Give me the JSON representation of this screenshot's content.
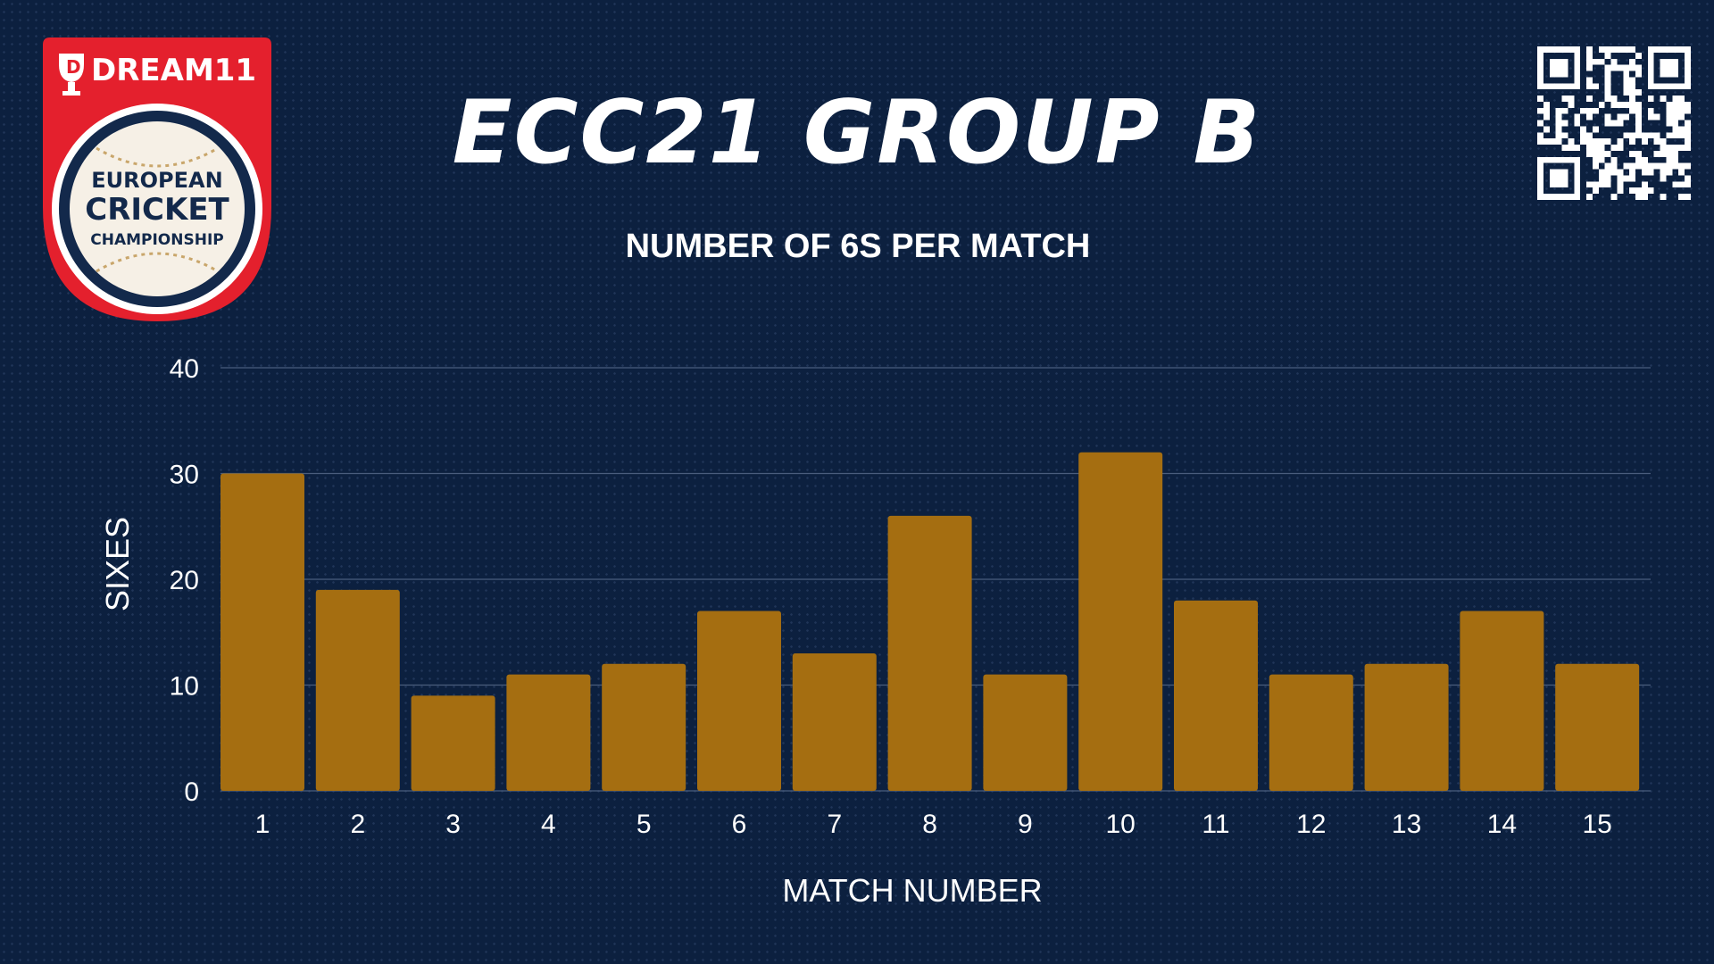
{
  "header": {
    "title": "ECC21 GROUP B"
  },
  "logo": {
    "brand": "DREAM11",
    "line1": "EUROPEAN",
    "line2": "CRICKET",
    "line3": "CHAMPIONSHIP"
  },
  "colors": {
    "background": "#0c203f",
    "bar": "#a56e11",
    "logo_red": "#e4202d",
    "logo_navy": "#13294b",
    "grid": "#4a5d7d"
  },
  "icons": {
    "qr": "qr-code-icon"
  },
  "chart_data": {
    "type": "bar",
    "title": "NUMBER OF 6S PER MATCH",
    "xlabel": "MATCH NUMBER",
    "ylabel": "SIXES",
    "categories": [
      "1",
      "2",
      "3",
      "4",
      "5",
      "6",
      "7",
      "8",
      "9",
      "10",
      "11",
      "12",
      "13",
      "14",
      "15"
    ],
    "values": [
      30,
      19,
      9,
      11,
      12,
      17,
      13,
      26,
      11,
      32,
      18,
      11,
      12,
      17,
      12
    ],
    "ylim": [
      0,
      40
    ],
    "yticks": [
      "0",
      "10",
      "20",
      "30",
      "40"
    ],
    "grid": true,
    "legend": "none"
  }
}
